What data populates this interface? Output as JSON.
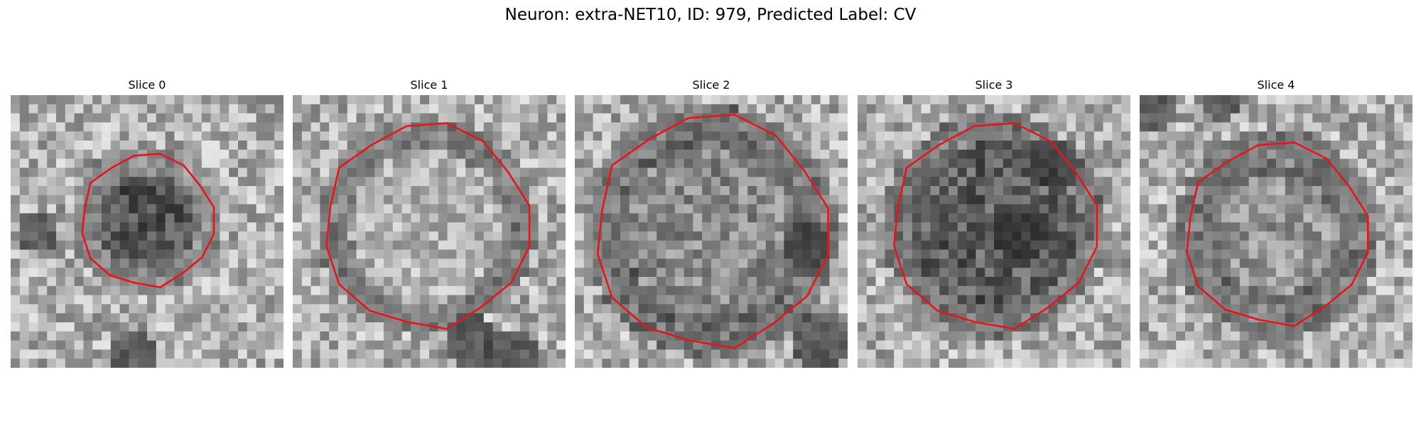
{
  "figure": {
    "title": "Neuron: extra-NET10, ID: 979, Predicted Label: CV"
  },
  "slices": [
    {
      "title": "Slice 0"
    },
    {
      "title": "Slice 1"
    },
    {
      "title": "Slice 2"
    },
    {
      "title": "Slice 3"
    },
    {
      "title": "Slice 4"
    }
  ],
  "colors": {
    "contour": "#e8141b",
    "background": "#ffffff"
  }
}
